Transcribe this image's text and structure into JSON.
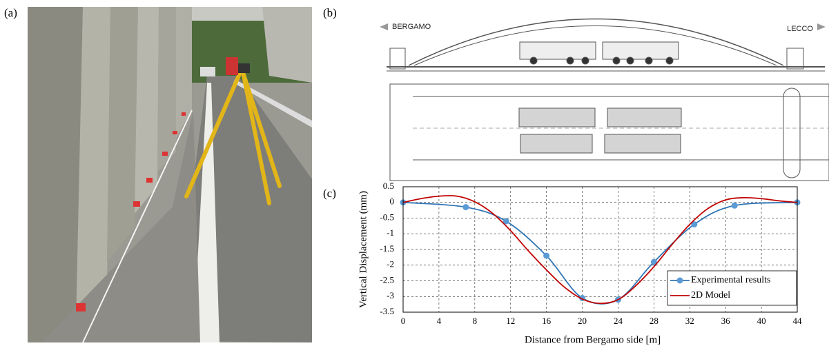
{
  "panels": {
    "a": "(a)",
    "b": "(b)",
    "c": "(c)"
  },
  "drawing": {
    "left_label": "BERGAMO",
    "right_label": "LECCO"
  },
  "chart_data": {
    "type": "line",
    "xlabel": "Distance from Bergamo side [m]",
    "ylabel": "Vertical Displacement  (mm)",
    "xlim": [
      0,
      44
    ],
    "xticks": [
      0,
      4,
      8,
      12,
      16,
      20,
      24,
      28,
      32,
      36,
      40,
      44
    ],
    "ylim": [
      -3.5,
      0.5
    ],
    "yticks": [
      0.5,
      0,
      -0.5,
      -1,
      -1.5,
      -2,
      -2.5,
      -3,
      -3.5
    ],
    "grid": true,
    "legend": "lower right",
    "series": [
      {
        "name": "Experimental results",
        "color": "#2e75b6",
        "markers": true,
        "x": [
          0,
          7,
          11.5,
          16,
          20,
          24,
          28,
          32.5,
          37,
          44
        ],
        "values": [
          0,
          -0.15,
          -0.6,
          -1.7,
          -3.05,
          -3.1,
          -1.9,
          -0.7,
          -0.1,
          0
        ]
      },
      {
        "name": "2D Model",
        "color": "#c00000",
        "markers": false,
        "x": [
          0,
          2,
          4,
          6,
          8,
          10,
          12,
          14,
          16,
          18,
          20,
          22,
          24,
          26,
          28,
          30,
          32,
          34,
          36,
          38,
          40,
          42,
          44
        ],
        "values": [
          0,
          0.12,
          0.2,
          0.2,
          0.02,
          -0.35,
          -0.9,
          -1.55,
          -2.15,
          -2.7,
          -3.08,
          -3.22,
          -3.1,
          -2.65,
          -2.05,
          -1.35,
          -0.7,
          -0.2,
          0.08,
          0.15,
          0.12,
          0.05,
          0
        ]
      }
    ]
  }
}
